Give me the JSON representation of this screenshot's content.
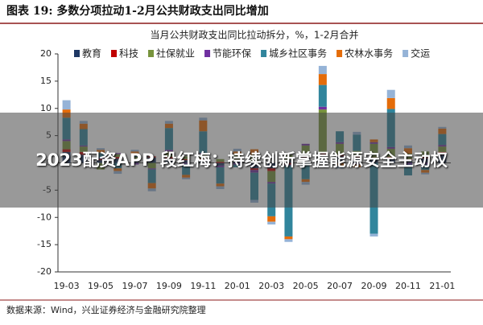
{
  "header": {
    "title": "图表 19:  多数分项拉动1-2月公共财政支出同比增加"
  },
  "chart_data": {
    "type": "stacked-bar",
    "title": "当月公共财政支出同比拉动拆分，%，1-2月合并",
    "categories": [
      "19-03",
      null,
      "19-05",
      null,
      "19-07",
      null,
      "19-09",
      null,
      "19-11",
      null,
      "20-01",
      null,
      "20-03",
      null,
      "20-05",
      null,
      "20-07",
      null,
      "20-09",
      null,
      "20-11",
      null,
      "21-01"
    ],
    "series": [
      {
        "name": "教育",
        "color": "#1f3864",
        "values": [
          2,
          1.5,
          0.5,
          0.8,
          0.3,
          1,
          0.8,
          0.5,
          0.5,
          -0.5,
          0.3,
          -1,
          -1,
          0.5,
          1,
          1.5,
          1.2,
          1,
          0.8,
          0.8,
          0.5,
          0.8,
          1.5
        ]
      },
      {
        "name": "科技",
        "color": "#c00000",
        "values": [
          0.5,
          0.5,
          0.2,
          0.3,
          0.3,
          0.2,
          0.3,
          0.2,
          0.3,
          0.2,
          0.3,
          -0.3,
          -0.5,
          -0.3,
          0.2,
          0.3,
          0.3,
          0.2,
          0.2,
          0.3,
          0.2,
          0.3,
          0.5
        ]
      },
      {
        "name": "社保就业",
        "color": "#77933c",
        "values": [
          1.5,
          1,
          -1.2,
          0.5,
          0.5,
          -1,
          1,
          0.5,
          0.8,
          0.5,
          1,
          1.5,
          -2,
          1,
          2,
          8,
          2,
          1,
          2.5,
          1.5,
          1,
          1,
          1
        ]
      },
      {
        "name": "节能环保",
        "color": "#7030a0",
        "values": [
          0.3,
          0.2,
          0.2,
          0.2,
          -0.3,
          -0.2,
          0.3,
          -0.2,
          0.2,
          -0.3,
          -0.3,
          -0.5,
          -0.3,
          -0.2,
          0.3,
          0.5,
          0.3,
          -0.3,
          0.3,
          0.3,
          -0.3,
          -0.3,
          0.3
        ]
      },
      {
        "name": "城乡社区事务",
        "color": "#31859c",
        "values": [
          4,
          3,
          1,
          -1,
          0.5,
          -2.5,
          4,
          -2,
          4,
          -3,
          -0.5,
          -5,
          -6,
          -13,
          -3,
          4,
          2,
          3,
          -13,
          7,
          -2,
          -1,
          2
        ]
      },
      {
        "name": "农林水事务",
        "color": "#e46c0a",
        "values": [
          1.5,
          1,
          0.5,
          -0.5,
          0.5,
          -1,
          0.8,
          -0.5,
          2,
          -0.5,
          0.5,
          1,
          -1,
          -0.5,
          -0.5,
          2,
          -0.5,
          -0.5,
          0.5,
          2,
          1,
          -0.5,
          1
        ]
      },
      {
        "name": "交运",
        "color": "#95b3d7",
        "values": [
          1.7,
          0.5,
          0.3,
          -0.5,
          0.3,
          -0.5,
          0.5,
          -0.3,
          0.5,
          -0.5,
          0.5,
          -0.5,
          -0.5,
          -0.5,
          -0.5,
          1.5,
          -0.5,
          0.5,
          -0.5,
          1.5,
          0.5,
          -0.3,
          0.3
        ]
      }
    ],
    "ylim": [
      -20,
      20
    ],
    "yticks": [
      -20,
      -15,
      -10,
      -5,
      0,
      5,
      10,
      15,
      20
    ]
  },
  "footer": {
    "source": "数据来源：Wind，兴业证券经济与金融研究院整理"
  },
  "overlay": {
    "headline": "2023配资APP 段红梅：持续创新掌握能源安全主动权"
  }
}
